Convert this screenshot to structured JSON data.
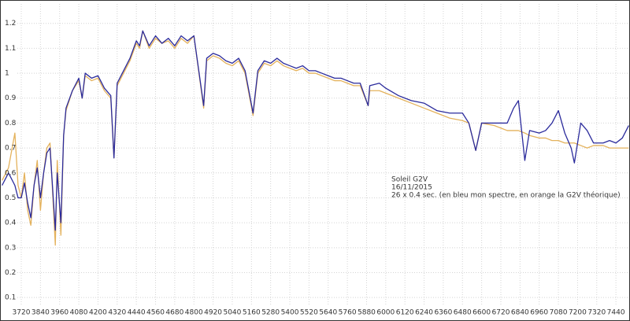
{
  "chart_data": {
    "type": "line",
    "annotations": [
      "Soleil G2V",
      "16/11/2015",
      "26 x 0.4 sec. (en bleu mon spectre, en orange la G2V théorique)"
    ],
    "x": [
      3600,
      3640,
      3680,
      3700,
      3720,
      3740,
      3760,
      3780,
      3800,
      3820,
      3840,
      3860,
      3880,
      3900,
      3933,
      3945,
      3968,
      3985,
      4000,
      4040,
      4080,
      4101,
      4120,
      4160,
      4200,
      4240,
      4280,
      4300,
      4320,
      4360,
      4400,
      4440,
      4460,
      4480,
      4520,
      4560,
      4600,
      4640,
      4680,
      4720,
      4760,
      4800,
      4861,
      4880,
      4920,
      4960,
      5000,
      5040,
      5080,
      5120,
      5170,
      5200,
      5240,
      5280,
      5320,
      5360,
      5400,
      5440,
      5480,
      5520,
      5560,
      5600,
      5640,
      5680,
      5720,
      5760,
      5800,
      5840,
      5890,
      5900,
      5960,
      6000,
      6080,
      6160,
      6240,
      6320,
      6400,
      6480,
      6520,
      6563,
      6600,
      6680,
      6760,
      6800,
      6830,
      6870,
      6900,
      6960,
      7000,
      7040,
      7080,
      7120,
      7160,
      7180,
      7220,
      7260,
      7300,
      7360,
      7400,
      7440,
      7480,
      7520
    ],
    "series": [
      {
        "color": "#e4b25c",
        "values": [
          0.57,
          0.62,
          0.76,
          0.55,
          0.5,
          0.6,
          0.45,
          0.39,
          0.55,
          0.65,
          0.45,
          0.6,
          0.7,
          0.72,
          0.31,
          0.65,
          0.35,
          0.75,
          0.85,
          0.93,
          0.97,
          0.9,
          0.99,
          0.97,
          0.98,
          0.93,
          0.9,
          0.66,
          0.95,
          1.0,
          1.05,
          1.12,
          1.1,
          1.17,
          1.1,
          1.14,
          1.12,
          1.13,
          1.1,
          1.14,
          1.12,
          1.15,
          0.86,
          1.05,
          1.07,
          1.06,
          1.04,
          1.03,
          1.05,
          1.0,
          0.83,
          1.0,
          1.04,
          1.03,
          1.05,
          1.03,
          1.02,
          1.01,
          1.02,
          1.0,
          1.0,
          0.99,
          0.98,
          0.97,
          0.97,
          0.96,
          0.95,
          0.95,
          0.87,
          0.93,
          0.93,
          0.92,
          0.9,
          0.88,
          0.86,
          0.84,
          0.82,
          0.81,
          0.8,
          0.69,
          0.8,
          0.79,
          0.77,
          0.77,
          0.77,
          0.76,
          0.75,
          0.74,
          0.74,
          0.73,
          0.73,
          0.72,
          0.72,
          0.72,
          0.71,
          0.7,
          0.71,
          0.71,
          0.7,
          0.7,
          0.7,
          0.7
        ]
      },
      {
        "color": "#2b2b9c",
        "values": [
          0.55,
          0.6,
          0.55,
          0.5,
          0.5,
          0.56,
          0.48,
          0.42,
          0.55,
          0.62,
          0.5,
          0.6,
          0.68,
          0.7,
          0.37,
          0.6,
          0.4,
          0.75,
          0.86,
          0.93,
          0.98,
          0.9,
          1.0,
          0.98,
          0.99,
          0.94,
          0.91,
          0.66,
          0.96,
          1.01,
          1.06,
          1.13,
          1.11,
          1.17,
          1.11,
          1.15,
          1.12,
          1.14,
          1.11,
          1.15,
          1.13,
          1.15,
          0.87,
          1.06,
          1.08,
          1.07,
          1.05,
          1.04,
          1.06,
          1.01,
          0.84,
          1.01,
          1.05,
          1.04,
          1.06,
          1.04,
          1.03,
          1.02,
          1.03,
          1.01,
          1.01,
          1.0,
          0.99,
          0.98,
          0.98,
          0.97,
          0.96,
          0.96,
          0.87,
          0.95,
          0.96,
          0.94,
          0.91,
          0.89,
          0.88,
          0.85,
          0.84,
          0.84,
          0.8,
          0.69,
          0.8,
          0.8,
          0.8,
          0.86,
          0.89,
          0.65,
          0.77,
          0.76,
          0.77,
          0.8,
          0.85,
          0.76,
          0.7,
          0.64,
          0.8,
          0.77,
          0.72,
          0.72,
          0.73,
          0.72,
          0.74,
          0.79
        ]
      }
    ],
    "xlim": [
      3587,
      7528
    ],
    "ylim": [
      0.069,
      1.278
    ],
    "xticks": [
      3720,
      3840,
      3960,
      4080,
      4200,
      4320,
      4440,
      4560,
      4680,
      4800,
      4920,
      5040,
      5160,
      5280,
      5400,
      5520,
      5640,
      5760,
      5880,
      6000,
      6120,
      6240,
      6360,
      6480,
      6600,
      6720,
      6840,
      6960,
      7080,
      7200,
      7320,
      7440
    ],
    "yticks": [
      0.1,
      0.2,
      0.3,
      0.4,
      0.5,
      0.6,
      0.7,
      0.8,
      0.9,
      1,
      1.1,
      1.2
    ],
    "grid": true
  }
}
